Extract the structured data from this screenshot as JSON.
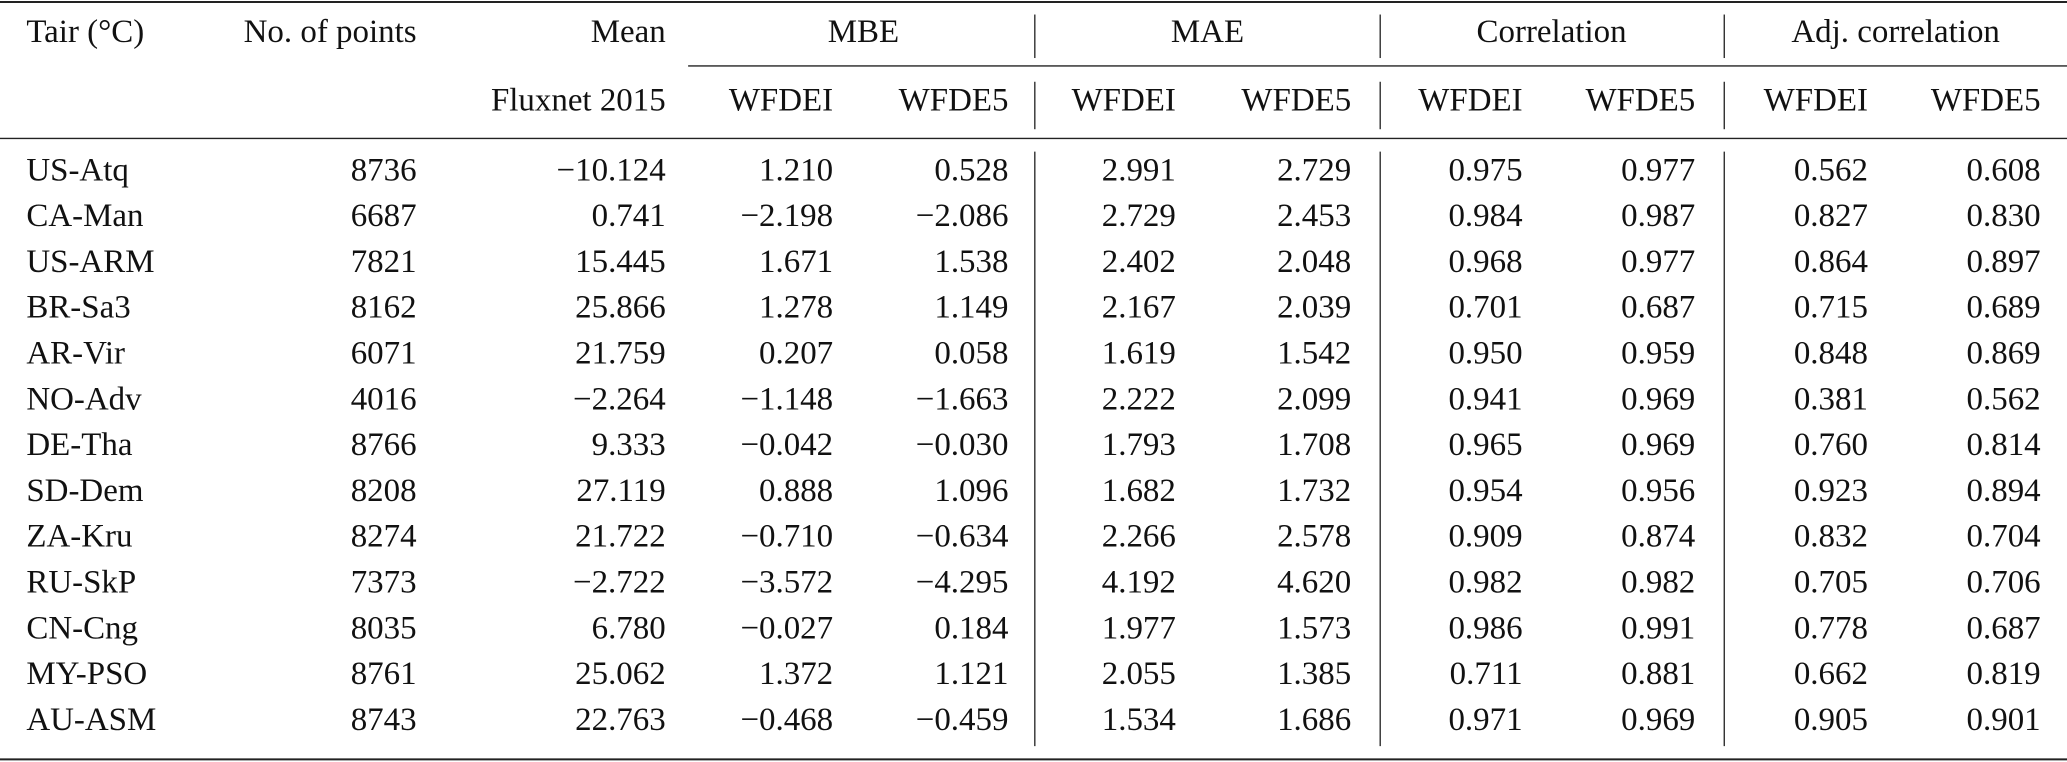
{
  "table": {
    "header": {
      "row1": [
        "Tair (°C)",
        "No. of points",
        "Mean",
        "MBE",
        "MAE",
        "Correlation",
        "Adj. correlation"
      ],
      "row2": [
        "Fluxnet 2015",
        "WFDEI",
        "WFDE5",
        "WFDEI",
        "WFDE5",
        "WFDEI",
        "WFDE5",
        "WFDEI",
        "WFDE5"
      ]
    },
    "rows": [
      [
        "US-Atq",
        "8736",
        "−10.124",
        "1.210",
        "0.528",
        "2.991",
        "2.729",
        "0.975",
        "0.977",
        "0.562",
        "0.608"
      ],
      [
        "CA-Man",
        "6687",
        "0.741",
        "−2.198",
        "−2.086",
        "2.729",
        "2.453",
        "0.984",
        "0.987",
        "0.827",
        "0.830"
      ],
      [
        "US-ARM",
        "7821",
        "15.445",
        "1.671",
        "1.538",
        "2.402",
        "2.048",
        "0.968",
        "0.977",
        "0.864",
        "0.897"
      ],
      [
        "BR-Sa3",
        "8162",
        "25.866",
        "1.278",
        "1.149",
        "2.167",
        "2.039",
        "0.701",
        "0.687",
        "0.715",
        "0.689"
      ],
      [
        "AR-Vir",
        "6071",
        "21.759",
        "0.207",
        "0.058",
        "1.619",
        "1.542",
        "0.950",
        "0.959",
        "0.848",
        "0.869"
      ],
      [
        "NO-Adv",
        "4016",
        "−2.264",
        "−1.148",
        "−1.663",
        "2.222",
        "2.099",
        "0.941",
        "0.969",
        "0.381",
        "0.562"
      ],
      [
        "DE-Tha",
        "8766",
        "9.333",
        "−0.042",
        "−0.030",
        "1.793",
        "1.708",
        "0.965",
        "0.969",
        "0.760",
        "0.814"
      ],
      [
        "SD-Dem",
        "8208",
        "27.119",
        "0.888",
        "1.096",
        "1.682",
        "1.732",
        "0.954",
        "0.956",
        "0.923",
        "0.894"
      ],
      [
        "ZA-Kru",
        "8274",
        "21.722",
        "−0.710",
        "−0.634",
        "2.266",
        "2.578",
        "0.909",
        "0.874",
        "0.832",
        "0.704"
      ],
      [
        "RU-SkP",
        "7373",
        "−2.722",
        "−3.572",
        "−4.295",
        "4.192",
        "4.620",
        "0.982",
        "0.982",
        "0.705",
        "0.706"
      ],
      [
        "CN-Cng",
        "8035",
        "6.780",
        "−0.027",
        "0.184",
        "1.977",
        "1.573",
        "0.986",
        "0.991",
        "0.778",
        "0.687"
      ],
      [
        "MY-PSO",
        "8761",
        "25.062",
        "1.372",
        "1.121",
        "2.055",
        "1.385",
        "0.711",
        "0.881",
        "0.662",
        "0.819"
      ],
      [
        "AU-ASM",
        "8743",
        "22.763",
        "−0.468",
        "−0.459",
        "1.534",
        "1.686",
        "0.971",
        "0.969",
        "0.905",
        "0.901"
      ]
    ]
  }
}
